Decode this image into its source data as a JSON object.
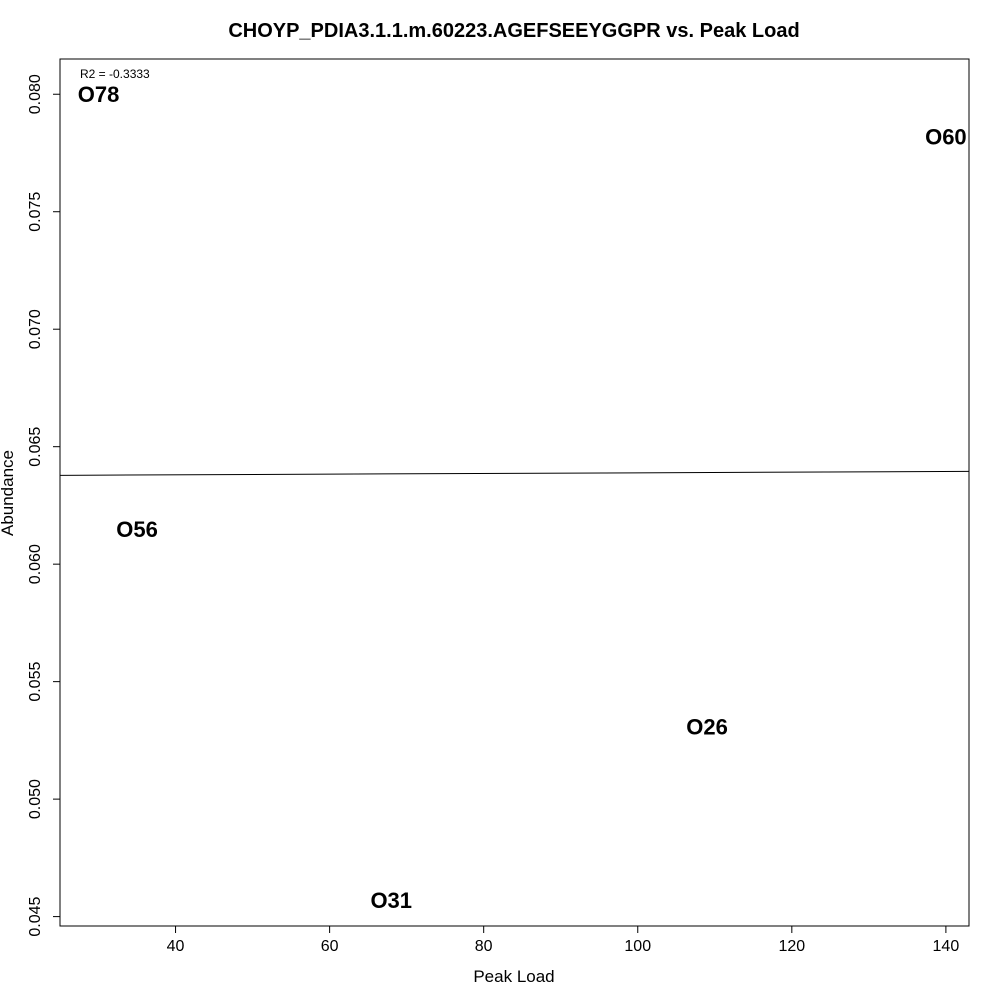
{
  "chart_data": {
    "type": "scatter",
    "title": "CHOYP_PDIA3.1.1.m.60223.AGEFSEEYGGPR vs. Peak Load",
    "xlabel": "Peak Load",
    "ylabel": "Abundance",
    "xlim": [
      25,
      143
    ],
    "ylim": [
      0.0446,
      0.0815
    ],
    "xticks": [
      40,
      60,
      80,
      100,
      120,
      140
    ],
    "xtick_labels": [
      "40",
      "60",
      "80",
      "100",
      "120",
      "140"
    ],
    "yticks": [
      0.045,
      0.05,
      0.055,
      0.06,
      0.065,
      0.07,
      0.075,
      0.08
    ],
    "ytick_labels": [
      "0.045",
      "0.050",
      "0.055",
      "0.060",
      "0.065",
      "0.070",
      "0.075",
      "0.080"
    ],
    "points": [
      {
        "label": "O78",
        "x": 30,
        "y": 0.08
      },
      {
        "label": "O60",
        "x": 140,
        "y": 0.0782
      },
      {
        "label": "O56",
        "x": 35,
        "y": 0.0615
      },
      {
        "label": "O26",
        "x": 109,
        "y": 0.0531
      },
      {
        "label": "O31",
        "x": 68,
        "y": 0.0457
      }
    ],
    "fit_line": {
      "x": [
        25,
        143
      ],
      "y": [
        0.06378,
        0.06395
      ]
    },
    "annotation": "R2 = -0.3333",
    "grid": false
  }
}
